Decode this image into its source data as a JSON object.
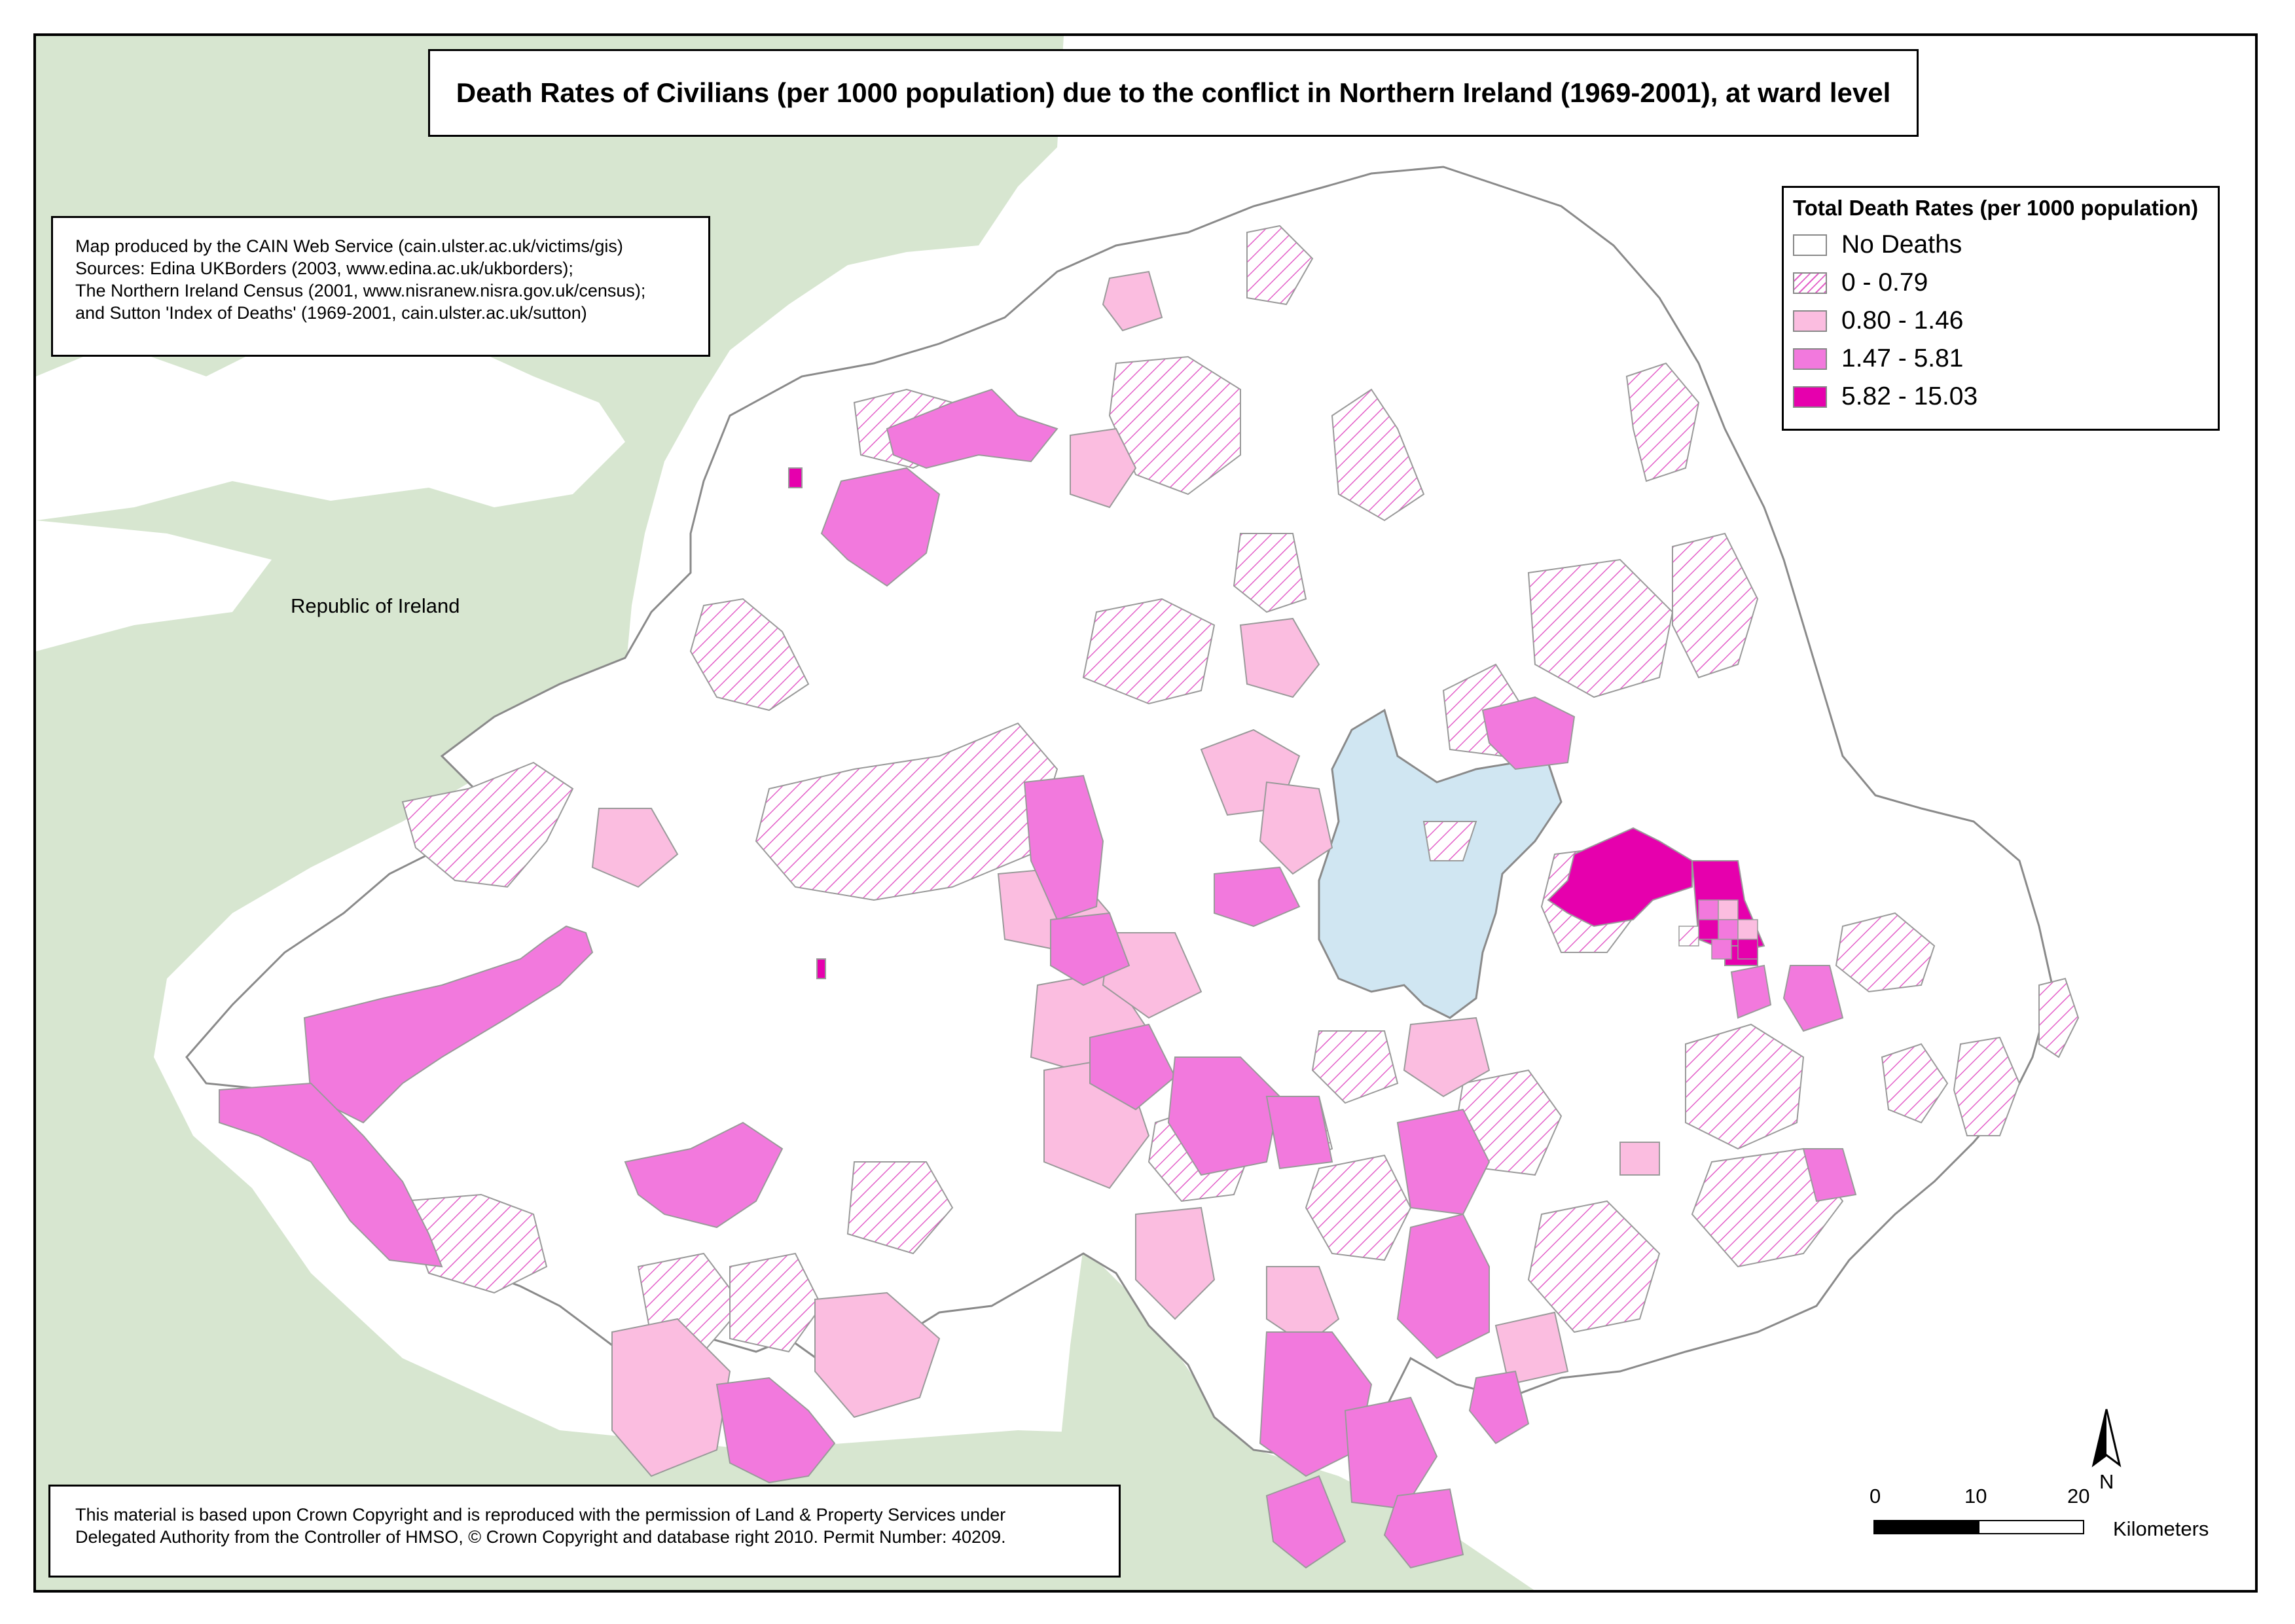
{
  "title": "Death Rates of Civilians (per 1000 population) due to the conflict in Northern Ireland (1969-2001), at ward level",
  "credits": [
    "Map produced by the CAIN Web Service (cain.ulster.ac.uk/victims/gis)",
    "Sources: Edina UKBorders (2003, www.edina.ac.uk/ukborders);",
    "The Northern Ireland Census (2001, www.nisranew.nisra.gov.uk/census);",
    "and Sutton 'Index of Deaths' (1969-2001, cain.ulster.ac.uk/sutton)"
  ],
  "legend": {
    "title": "Total Death Rates (per 1000 population)",
    "items": [
      {
        "label": "No Deaths",
        "fill": "#ffffff",
        "pattern": false
      },
      {
        "label": "0 - 0.79",
        "fill": "#e35fc8",
        "pattern": true
      },
      {
        "label": "0.80 - 1.46",
        "fill": "#fbbde0",
        "pattern": false
      },
      {
        "label": "1.47 - 5.81",
        "fill": "#f279dd",
        "pattern": false
      },
      {
        "label": "5.82 - 15.03",
        "fill": "#e600ad",
        "pattern": false
      }
    ]
  },
  "place_label": "Republic of Ireland",
  "copyright": [
    "This material is based upon Crown Copyright and is reproduced with the permission of Land & Property Services under",
    "Delegated Authority from the Controller of HMSO, © Crown Copyright and database right 2010. Permit Number: 40209."
  ],
  "north_label": "N",
  "scale": {
    "ticks": [
      "0",
      "10",
      "20"
    ],
    "unit": "Kilometers"
  },
  "colors": {
    "land_roi": "#d7e6d0",
    "lough": "#d0e6f2",
    "ward_border": "#9a9a9a"
  }
}
